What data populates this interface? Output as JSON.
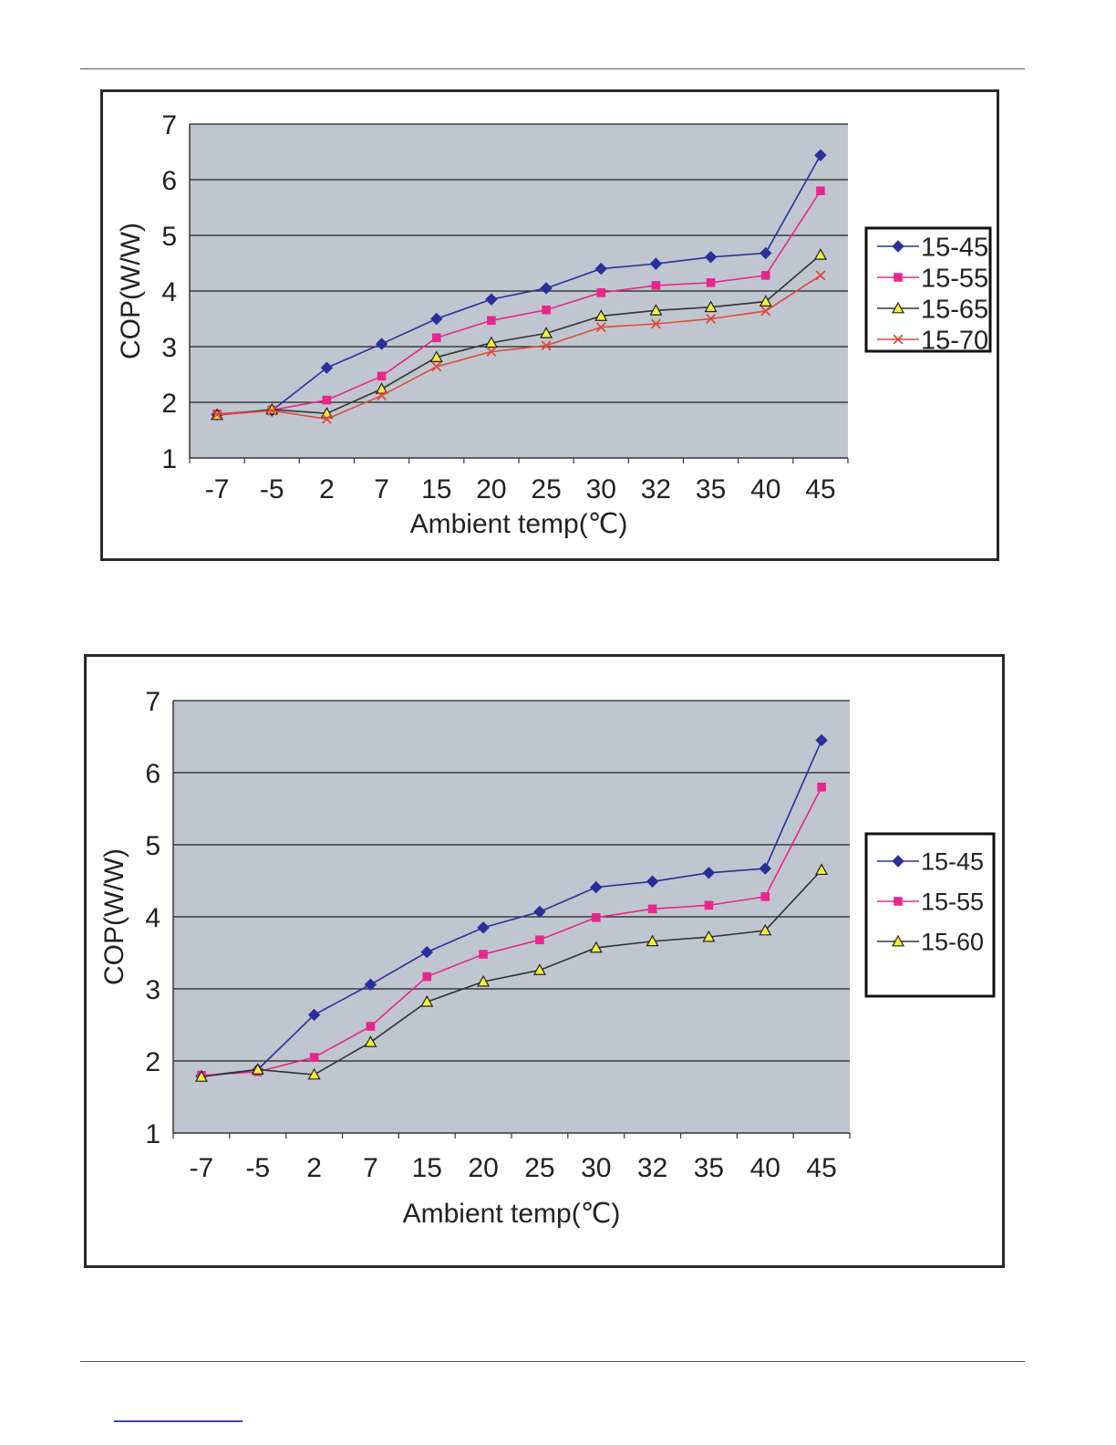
{
  "colors": {
    "plot_bg": "#bfc6cf",
    "grid": "#222222",
    "series_blue": "#2b2f9b",
    "series_pink": "#e8278a",
    "series_yellow": "#f2ef3a",
    "series_red": "#e04a3a",
    "line_dark": "#333333"
  },
  "chart_data": [
    {
      "type": "line",
      "xlabel": "Ambient temp(℃)",
      "ylabel": "COP(W/W)",
      "ylim": [
        1,
        7
      ],
      "yticks": [
        "1",
        "2",
        "3",
        "4",
        "5",
        "6",
        "7"
      ],
      "categories": [
        "-7",
        "-5",
        "2",
        "7",
        "15",
        "20",
        "25",
        "30",
        "32",
        "35",
        "40",
        "45"
      ],
      "grid": true,
      "legend": "right",
      "series": [
        {
          "name": "15-45",
          "marker": "diamond",
          "values": [
            1.78,
            1.85,
            2.62,
            3.05,
            3.5,
            3.85,
            4.05,
            4.4,
            4.49,
            4.61,
            4.68,
            6.44
          ]
        },
        {
          "name": "15-55",
          "marker": "square",
          "values": [
            1.79,
            1.86,
            2.04,
            2.47,
            3.16,
            3.47,
            3.66,
            3.97,
            4.1,
            4.15,
            4.28,
            5.8
          ]
        },
        {
          "name": "15-65",
          "marker": "triangle",
          "values": [
            1.77,
            1.87,
            1.8,
            2.24,
            2.81,
            3.07,
            3.24,
            3.55,
            3.65,
            3.71,
            3.81,
            4.65
          ]
        },
        {
          "name": "15-70",
          "marker": "x",
          "values": [
            1.78,
            1.85,
            1.7,
            2.12,
            2.64,
            2.91,
            3.02,
            3.35,
            3.41,
            3.5,
            3.64,
            4.28
          ]
        }
      ]
    },
    {
      "type": "line",
      "xlabel": "Ambient temp(℃)",
      "ylabel": "COP(W/W)",
      "ylim": [
        1,
        7
      ],
      "yticks": [
        "1",
        "2",
        "3",
        "4",
        "5",
        "6",
        "7"
      ],
      "categories": [
        "-7",
        "-5",
        "2",
        "7",
        "15",
        "20",
        "25",
        "30",
        "32",
        "35",
        "40",
        "45"
      ],
      "grid": true,
      "legend": "right",
      "series": [
        {
          "name": "15-45",
          "marker": "diamond",
          "values": [
            1.79,
            1.88,
            2.64,
            3.06,
            3.51,
            3.85,
            4.07,
            4.41,
            4.49,
            4.61,
            4.67,
            6.45
          ]
        },
        {
          "name": "15-55",
          "marker": "square",
          "values": [
            1.8,
            1.85,
            2.05,
            2.48,
            3.17,
            3.48,
            3.68,
            3.99,
            4.11,
            4.16,
            4.28,
            5.8
          ]
        },
        {
          "name": "15-60",
          "marker": "triangle",
          "values": [
            1.78,
            1.88,
            1.81,
            2.26,
            2.82,
            3.1,
            3.26,
            3.57,
            3.66,
            3.72,
            3.81,
            4.65
          ]
        }
      ]
    }
  ]
}
